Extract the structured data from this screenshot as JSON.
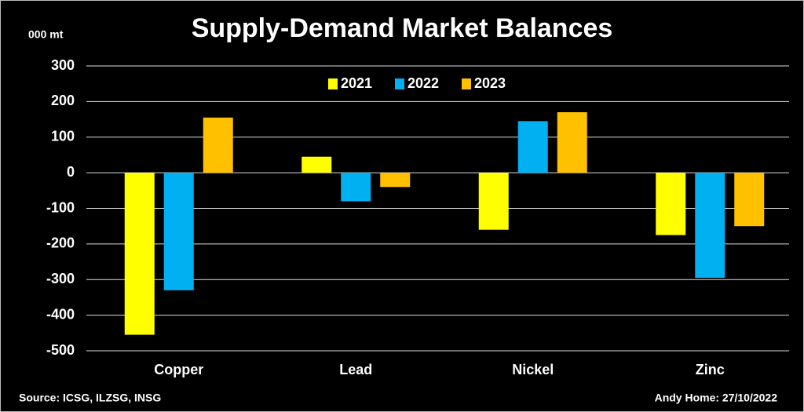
{
  "chart_data": {
    "type": "bar",
    "title": "Supply-Demand Market Balances",
    "y_label": "000 mt",
    "categories": [
      "Copper",
      "Lead",
      "Nickel",
      "Zinc"
    ],
    "series": [
      {
        "name": "2021",
        "color": "#ffff00",
        "values": [
          -455,
          45,
          -160,
          -175
        ]
      },
      {
        "name": "2022",
        "color": "#00b0f0",
        "values": [
          -330,
          -80,
          145,
          -295
        ]
      },
      {
        "name": "2023",
        "color": "#ffc000",
        "values": [
          155,
          -40,
          170,
          -150
        ]
      }
    ],
    "ylim": [
      -500,
      300
    ],
    "yticks": [
      -500,
      -400,
      -300,
      -200,
      -100,
      0,
      100,
      200,
      300
    ],
    "grid": true,
    "legend": "top",
    "source": "Source: ICSG, ILZSG, INSG",
    "credit": "Andy Home: 27/10/2022"
  }
}
